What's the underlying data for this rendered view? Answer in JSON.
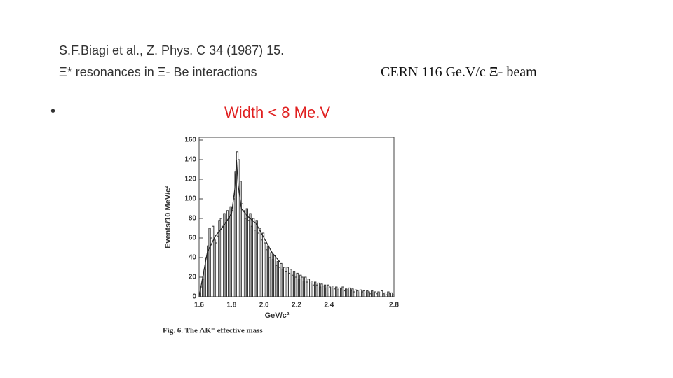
{
  "slide": {
    "reference": "S.F.Biagi et al., Z. Phys. C 34 (1987) 15.",
    "subtitle": "Ξ* resonances in Ξ- Be interactions",
    "beam": "CERN  116 Ge.V/c Ξ- beam",
    "bullet": "•",
    "width_note": "Width < 8 Me.V"
  },
  "chart_data": {
    "type": "histogram",
    "x_label": "GeV/c²",
    "y_label": "Events/10 MeV/c²",
    "caption": "Fig. 6. The ΛK⁻ effective mass",
    "color": "#333333",
    "bins": [
      1.6,
      1.61,
      1.62,
      1.63,
      1.64,
      1.65,
      1.66,
      1.67,
      1.68,
      1.69,
      1.7,
      1.71,
      1.72,
      1.73,
      1.74,
      1.75,
      1.76,
      1.77,
      1.78,
      1.79,
      1.8,
      1.81,
      1.82,
      1.83,
      1.84,
      1.85,
      1.86,
      1.87,
      1.88,
      1.89,
      1.9,
      1.91,
      1.92,
      1.93,
      1.94,
      1.95,
      1.96,
      1.97,
      1.98,
      1.99,
      2.0,
      2.01,
      2.02,
      2.03,
      2.04,
      2.05,
      2.06,
      2.07,
      2.08,
      2.09,
      2.1,
      2.11,
      2.12,
      2.13,
      2.14,
      2.15,
      2.16,
      2.17,
      2.18,
      2.19,
      2.2,
      2.21,
      2.22,
      2.23,
      2.24,
      2.25,
      2.26,
      2.27,
      2.28,
      2.29,
      2.3,
      2.31,
      2.32,
      2.33,
      2.34,
      2.35,
      2.36,
      2.37,
      2.38,
      2.39,
      2.4,
      2.41,
      2.42,
      2.43,
      2.44,
      2.45,
      2.46,
      2.47,
      2.48,
      2.49,
      2.5,
      2.51,
      2.52,
      2.53,
      2.54,
      2.55,
      2.56,
      2.57,
      2.58,
      2.59,
      2.6,
      2.61,
      2.62,
      2.63,
      2.64,
      2.65,
      2.66,
      2.67,
      2.68,
      2.69,
      2.7,
      2.71,
      2.72,
      2.73,
      2.74,
      2.75,
      2.76,
      2.77,
      2.78,
      2.79,
      2.8
    ],
    "values": [
      4,
      10,
      18,
      28,
      40,
      52,
      70,
      60,
      72,
      58,
      55,
      62,
      78,
      80,
      72,
      85,
      76,
      88,
      80,
      92,
      88,
      100,
      128,
      148,
      140,
      118,
      95,
      88,
      80,
      90,
      78,
      85,
      72,
      80,
      68,
      78,
      65,
      70,
      58,
      65,
      55,
      48,
      52,
      40,
      45,
      38,
      42,
      32,
      36,
      30,
      34,
      28,
      30,
      26,
      30,
      24,
      28,
      22,
      26,
      20,
      24,
      18,
      22,
      20,
      16,
      20,
      15,
      18,
      14,
      16,
      12,
      15,
      12,
      14,
      10,
      13,
      11,
      12,
      9,
      12,
      10,
      9,
      11,
      8,
      10,
      7,
      9,
      8,
      10,
      6,
      8,
      7,
      9,
      6,
      8,
      5,
      7,
      6,
      4,
      7,
      5,
      6,
      4,
      6,
      5,
      3,
      6,
      4,
      5,
      3,
      5,
      4,
      6,
      3,
      4,
      2,
      5,
      3,
      4,
      2
    ],
    "fit": {
      "x": [
        1.6,
        1.65,
        1.7,
        1.75,
        1.8,
        1.82,
        1.83,
        1.84,
        1.86,
        1.9,
        1.95,
        2.0,
        2.05,
        2.1
      ],
      "y": [
        0,
        45,
        62,
        72,
        85,
        110,
        140,
        115,
        90,
        82,
        75,
        60,
        45,
        35
      ]
    },
    "xlim": [
      1.6,
      2.8
    ],
    "ylim": [
      0,
      160
    ],
    "xticks": [
      1.6,
      1.8,
      {
        "value": 2,
        "label": "2.0"
      },
      2.2,
      2.4,
      2.8
    ],
    "yticks": [
      0,
      20,
      40,
      60,
      80,
      100,
      120,
      140,
      160
    ]
  }
}
